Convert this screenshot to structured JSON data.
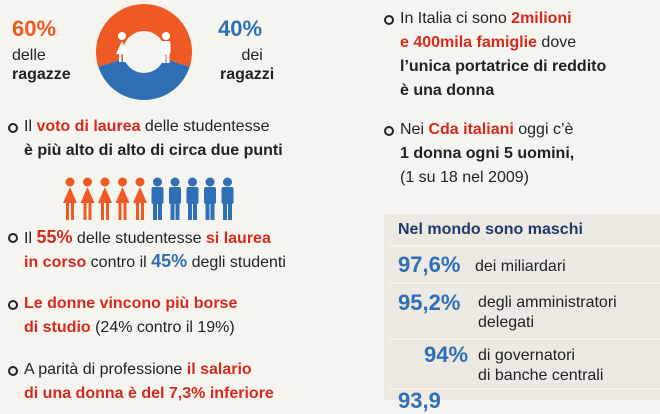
{
  "left": {
    "girls_pct": "60%",
    "girls_line1": "delle",
    "girls_line2": "ragazze",
    "boys_pct": "40%",
    "boys_line1": "dei",
    "boys_line2": "ragazzi",
    "donut": {
      "girls_share": 60,
      "boys_share": 40,
      "color_girls": "#ef5a24",
      "color_boys": "#2f6fb5"
    },
    "item1_a": "Il ",
    "item1_b": "voto di laurea",
    "item1_c": " delle studentesse",
    "item1_line2": "è più alto di alto di circa due punti",
    "people": {
      "female_count": 5,
      "male_count": 5
    },
    "item2_a": "Il ",
    "item2_b": "55%",
    "item2_c": " delle studentesse ",
    "item2_d": "si laurea",
    "item2_e": "in corso",
    "item2_f": " contro il ",
    "item2_g": "45%",
    "item2_h": " degli studenti",
    "item3_line1": "Le donne vincono più borse",
    "item3_a": "di studio",
    "item3_b": " (24% contro il 19%)",
    "item4_a": "A parità di professione ",
    "item4_b": "il salario",
    "item4_c": "di una donna è del 7,3% inferiore"
  },
  "right": {
    "item1_a": "In Italia ci sono ",
    "item1_b": "2milioni",
    "item1_c": "e 400mila famiglie",
    "item1_d": " dove",
    "item1_e": "l’unica portatrice di reddito",
    "item1_f": "è una donna",
    "item2_a": "Nei ",
    "item2_b": "Cda italiani",
    "item2_c": " oggi c’è",
    "item2_d": "1 donna ogni 5 uomini,",
    "item2_e": "(1 su 18 nel 2009)",
    "panel_title": "Nel mondo sono maschi",
    "stat1_pct": "97,6%",
    "stat1_text": "dei miliardari",
    "stat2_pct": "95,2%",
    "stat2_line1": "degli amministratori",
    "stat2_line2": "delegati",
    "stat3_pct": "94%",
    "stat3_line1": "di governatori",
    "stat3_line2": "di banche centrali",
    "stat4_pct": "93,9"
  }
}
